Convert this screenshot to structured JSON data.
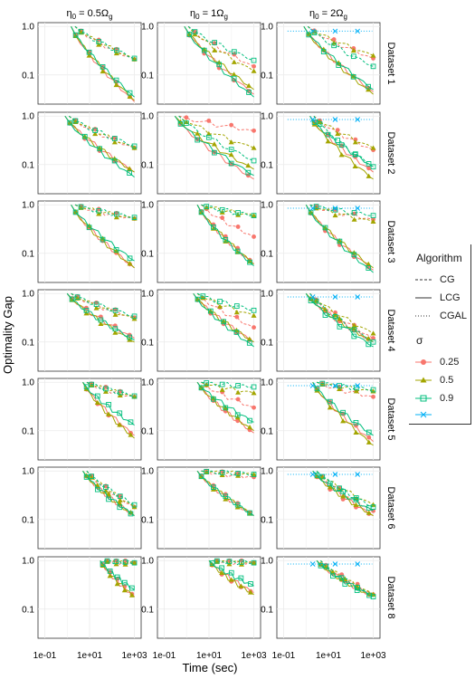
{
  "chart_data": {
    "type": "line",
    "ylabel": "Optimality Gap",
    "xlabel": "Time (sec)",
    "x_scale": "log10",
    "y_scale": "log10",
    "xlim": [
      0.05,
      2000
    ],
    "ylim": [
      0.025,
      1.2
    ],
    "x_ticks": [
      0.1,
      10,
      1000
    ],
    "x_tick_labels": [
      "1e-01",
      "1e+01",
      "1e+03"
    ],
    "y_ticks": [
      1.0,
      0.1
    ],
    "y_tick_labels": [
      "1.0",
      "0.1"
    ],
    "grid": true,
    "column_headers": [
      {
        "prefix": "η",
        "sub": "0",
        "mid": " = 0.5Ω",
        "tail": "g"
      },
      {
        "prefix": "η",
        "sub": "0",
        "mid": " = 1Ω",
        "tail": "g"
      },
      {
        "prefix": "η",
        "sub": "0",
        "mid": " = 2Ω",
        "tail": "g"
      }
    ],
    "row_labels": [
      "Dataset 1",
      "Dataset 2",
      "Dataset 3",
      "Dataset 4",
      "Dataset 5",
      "Dataset 6",
      "Dataset 8"
    ],
    "colors": {
      "0.25": "#F8766D",
      "0.5": "#A3A500",
      "0.9": "#00BF7D",
      "cgal": "#00B0F6"
    },
    "legend": {
      "title_algorithm": "Algorithm",
      "algorithms": [
        "CG",
        "LCG",
        "CGAL"
      ],
      "title_sigma": "σ",
      "sigmas": [
        "0.25",
        "0.5",
        "0.9",
        ""
      ],
      "position": "right"
    },
    "panels": [
      [
        {
          "t0": 1.5,
          "cg": {
            "0.25": 0.21,
            "0.5": 0.21,
            "0.9": 0.22
          },
          "lcg": {
            "0.25": 0.028,
            "0.5": 0.03,
            "0.9": 0.035
          },
          "cgal": null
        },
        {
          "t0": 0.8,
          "cg": {
            "0.25": 0.22,
            "0.5": 0.22,
            "0.9": 0.24
          },
          "lcg": {
            "0.25": 0.07,
            "0.5": 0.07,
            "0.9": 0.055
          },
          "cgal": null
        },
        {
          "t0": 1.5,
          "cg": {
            "0.25": 0.52,
            "0.5": 0.52,
            "0.9": 0.55
          },
          "lcg": {
            "0.25": 0.05,
            "0.5": 0.05,
            "0.9": 0.07
          },
          "cgal": null
        },
        {
          "t0": 1.0,
          "cg": {
            "0.25": 0.32,
            "0.5": 0.3,
            "0.9": 0.34
          },
          "lcg": {
            "0.25": 0.12,
            "0.5": 0.1,
            "0.9": 0.11
          },
          "cgal": null
        },
        {
          "t0": 5.0,
          "cg": {
            "0.25": 0.5,
            "0.5": 0.5,
            "0.9": 0.52
          },
          "lcg": {
            "0.25": 0.08,
            "0.5": 0.07,
            "0.9": 0.13
          },
          "cgal": null
        },
        {
          "t0": 5.0,
          "cg": {
            "0.25": 0.18,
            "0.5": 0.18,
            "0.9": 0.2
          },
          "lcg": {
            "0.25": 0.12,
            "0.5": 0.12,
            "0.9": 0.12
          },
          "cgal": null
        },
        {
          "t0": 30.0,
          "cg": {
            "0.25": 0.9,
            "0.5": 0.9,
            "0.9": 0.9
          },
          "lcg": {
            "0.25": 0.18,
            "0.5": 0.18,
            "0.9": 0.25
          },
          "cgal": null
        }
      ],
      [
        {
          "t0": 0.8,
          "cg": {
            "0.25": 0.15,
            "0.5": 0.12,
            "0.9": 0.2
          },
          "lcg": {
            "0.25": 0.04,
            "0.5": 0.05,
            "0.9": 0.035
          },
          "cgal": null
        },
        {
          "t0": 0.3,
          "cg": {
            "0.25": 0.5,
            "0.5": 0.22,
            "0.9": 0.12
          },
          "lcg": {
            "0.25": 0.05,
            "0.5": 0.08,
            "0.9": 0.06
          },
          "cgal": null
        },
        {
          "t0": 3.0,
          "cg": {
            "0.25": 0.22,
            "0.5": 0.6,
            "0.9": 0.6
          },
          "lcg": {
            "0.25": 0.06,
            "0.5": 0.06,
            "0.9": 0.055
          },
          "cgal": null
        },
        {
          "t0": 2.0,
          "cg": {
            "0.25": 0.2,
            "0.5": 0.35,
            "0.9": 0.45
          },
          "lcg": {
            "0.25": 0.1,
            "0.5": 0.1,
            "0.9": 0.08
          },
          "cgal": null
        },
        {
          "t0": 3.0,
          "cg": {
            "0.25": 0.3,
            "0.5": 0.6,
            "0.9": 0.8
          },
          "lcg": {
            "0.25": 0.09,
            "0.5": 0.1,
            "0.9": 0.15
          },
          "cgal": null
        },
        {
          "t0": 3.0,
          "cg": {
            "0.25": 0.75,
            "0.5": 0.85,
            "0.9": 0.85
          },
          "lcg": {
            "0.25": 0.12,
            "0.5": 0.12,
            "0.9": 0.12
          },
          "cgal": null
        },
        {
          "t0": 10.0,
          "cg": {
            "0.25": 0.9,
            "0.5": 0.9,
            "0.9": 0.9
          },
          "lcg": {
            "0.25": 0.22,
            "0.5": 0.2,
            "0.9": 0.3
          },
          "cgal": null
        }
      ],
      [
        {
          "t0": 0.8,
          "cg": {
            "0.25": 0.22,
            "0.5": 0.25,
            "0.9": 0.15
          },
          "lcg": {
            "0.25": 0.045,
            "0.5": 0.04,
            "0.9": 0.05
          },
          "cgal": 0.8
        },
        {
          "t0": 1.5,
          "cg": {
            "0.25": 0.2,
            "0.5": 0.22,
            "0.9": 0.09
          },
          "lcg": {
            "0.25": 0.07,
            "0.5": 0.05,
            "0.9": 0.09
          },
          "cgal": 0.85
        },
        {
          "t0": 1.0,
          "cg": {
            "0.25": 0.5,
            "0.5": 0.45,
            "0.9": 0.6
          },
          "lcg": {
            "0.25": 0.045,
            "0.5": 0.05,
            "0.9": 0.04
          },
          "cgal": 0.85
        },
        {
          "t0": 1.0,
          "cg": {
            "0.25": 0.12,
            "0.5": 0.15,
            "0.9": 0.1
          },
          "lcg": {
            "0.25": 0.1,
            "0.5": 0.1,
            "0.9": 0.08
          },
          "cgal": 0.85
        },
        {
          "t0": 2.0,
          "cg": {
            "0.25": 0.5,
            "0.5": 0.65,
            "0.9": 0.7
          },
          "lcg": {
            "0.25": 0.06,
            "0.5": 0.05,
            "0.9": 0.08
          },
          "cgal": 0.85
        },
        {
          "t0": 2.0,
          "cg": {
            "0.25": 0.15,
            "0.5": 0.2,
            "0.9": 0.18
          },
          "lcg": {
            "0.25": 0.12,
            "0.5": 0.12,
            "0.9": 0.15
          },
          "cgal": 0.85
        },
        {
          "t0": 3.0,
          "cg": {
            "0.25": 0.2,
            "0.5": 0.2,
            "0.9": 0.18
          },
          "lcg": {
            "0.25": 0.18,
            "0.5": 0.18,
            "0.9": 0.18
          },
          "cgal": 0.85
        }
      ]
    ]
  }
}
